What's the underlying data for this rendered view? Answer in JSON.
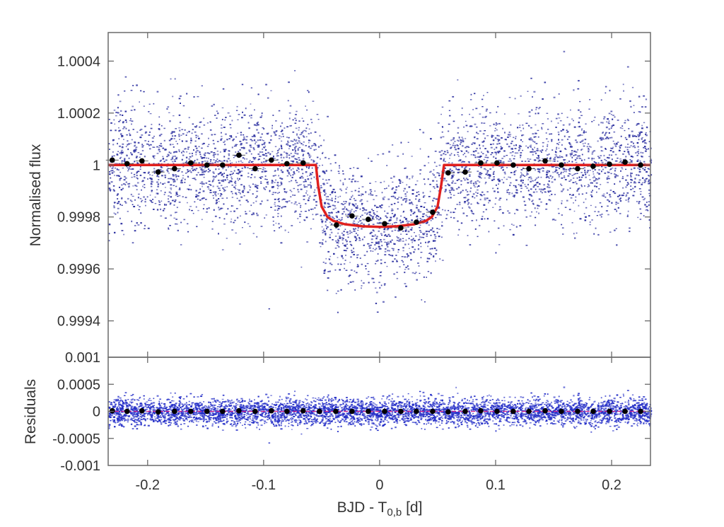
{
  "chart_data": [
    {
      "panel": "top",
      "type": "scatter",
      "title": "",
      "xlabel": "",
      "ylabel": "Normalised flux",
      "xlim": [
        -0.234,
        0.2335
      ],
      "ylim": [
        0.99926,
        1.00051
      ],
      "yticks": [
        1.0004,
        1.0002,
        1,
        0.9998,
        0.9996,
        0.9994
      ],
      "ytick_labels": [
        "1.0004",
        "1.0002",
        "1",
        "0.9998",
        "0.9996",
        "0.9994"
      ],
      "xticks": [
        -0.2,
        -0.1,
        0,
        0.1,
        0.2
      ],
      "grid": false,
      "legend": null,
      "series": [
        {
          "name": "Unbinned photometry",
          "style": "small blue dots",
          "color": "#2b2fa0",
          "description": "Dense scatter, roughly ±0.00015 spread around the model"
        },
        {
          "name": "Binned data",
          "style": "black filled circles",
          "color": "#000000",
          "x": [
            -0.2305,
            -0.2177,
            -0.2049,
            -0.1909,
            -0.1768,
            -0.1628,
            -0.1488,
            -0.1354,
            -0.1213,
            -0.1073,
            -0.0933,
            -0.0799,
            -0.0659,
            -0.0372,
            -0.0238,
            -0.0098,
            0.0043,
            0.0183,
            0.0317,
            0.0457,
            0.0591,
            0.0738,
            0.0872,
            0.1012,
            0.1152,
            0.1287,
            0.1427,
            0.1567,
            0.1707,
            0.1841,
            0.1982,
            0.2116,
            0.225
          ],
          "y": [
            1.000019,
            1.000005,
            1.000016,
            0.999973,
            0.999986,
            1.000008,
            1.0,
            1.0,
            1.000038,
            0.999986,
            1.000019,
            1.000005,
            1.000008,
            0.999769,
            0.999804,
            0.999791,
            0.999774,
            0.999758,
            0.99978,
            0.999818,
            0.99997,
            0.999973,
            1.000008,
            1.000008,
            1.0,
            0.999986,
            1.000016,
            1.0,
            0.999986,
            0.999995,
            1.000003,
            1.000011,
            1.0
          ]
        },
        {
          "name": "Transit model",
          "style": "red solid line",
          "color": "#e0201e",
          "x": [
            -0.234,
            -0.0549,
            -0.053,
            -0.05,
            -0.045,
            -0.04,
            -0.03,
            -0.015,
            0.0,
            0.015,
            0.03,
            0.04,
            0.045,
            0.05,
            0.053,
            0.0555,
            0.2335
          ],
          "y": [
            1.0,
            1.0,
            0.99992,
            0.99984,
            0.9998,
            0.999785,
            0.999772,
            0.999764,
            0.999762,
            0.999764,
            0.999772,
            0.999785,
            0.9998,
            0.99984,
            0.99992,
            1.0,
            1.0
          ],
          "transit_depth": 0.000238,
          "ingress_start": -0.0549,
          "egress_end": 0.0555
        }
      ]
    },
    {
      "panel": "bottom",
      "type": "scatter",
      "title": "",
      "xlabel": "BJD - T0,b [d]",
      "ylabel": "Residuals",
      "xlim": [
        -0.234,
        0.2335
      ],
      "ylim": [
        -0.001,
        0.001
      ],
      "yticks": [
        0.001,
        0.0005,
        0,
        -0.0005,
        -0.001
      ],
      "ytick_labels": [
        "0.001",
        "0.0005",
        "0",
        "-0.0005",
        "-0.001"
      ],
      "xticks": [
        -0.2,
        -0.1,
        0,
        0.1,
        0.2
      ],
      "xtick_labels": [
        "-0.2",
        "-0.1",
        "0",
        "0.1",
        "0.2"
      ],
      "grid": false,
      "legend": null,
      "series": [
        {
          "name": "Unbinned residuals",
          "style": "small blue dots",
          "color": "#2630c8",
          "description": "Scatter centred on 0, spread about ±0.0003"
        },
        {
          "name": "Binned residuals",
          "style": "black filled circles",
          "color": "#000000",
          "x": [
            -0.2305,
            -0.2177,
            -0.2049,
            -0.1909,
            -0.1768,
            -0.1628,
            -0.1488,
            -0.1354,
            -0.1213,
            -0.1073,
            -0.0933,
            -0.0799,
            -0.0659,
            -0.0519,
            -0.0378,
            -0.0238,
            -0.0098,
            0.0043,
            0.0183,
            0.0317,
            0.0457,
            0.0591,
            0.0738,
            0.0872,
            0.1012,
            0.1152,
            0.1287,
            0.1427,
            0.1567,
            0.1707,
            0.1841,
            0.1982,
            0.2116,
            0.225
          ],
          "y": [
            1e-05,
            0.0,
            1e-05,
            -1e-05,
            0.0,
            0.0,
            0.0,
            0.0,
            1e-05,
            0.0,
            1e-05,
            0.0,
            1e-05,
            0.0,
            0.0,
            0.0,
            0.0,
            0.0,
            0.0,
            0.0,
            0.0,
            -1e-05,
            0.0,
            1e-05,
            0.0,
            0.0,
            0.0,
            1e-05,
            0.0,
            0.0,
            0.0,
            0.0,
            0.0,
            0.0
          ]
        },
        {
          "name": "Zero line",
          "style": "red/magenta line",
          "color": "#d0208a",
          "x": [
            -0.234,
            0.2335
          ],
          "y": [
            0,
            0
          ]
        }
      ]
    }
  ],
  "axes": {
    "top_ylabel": "Normalised flux",
    "bottom_ylabel": "Residuals",
    "xlabel_main": "BJD - T",
    "xlabel_sub": "0,b",
    "xlabel_unit": " [d]"
  },
  "colors": {
    "model": "#e0201e",
    "scatter_top": "#2b2fa0",
    "scatter_bottom": "#2630c8",
    "binned": "#000000",
    "frame": "#6a6a6a"
  }
}
